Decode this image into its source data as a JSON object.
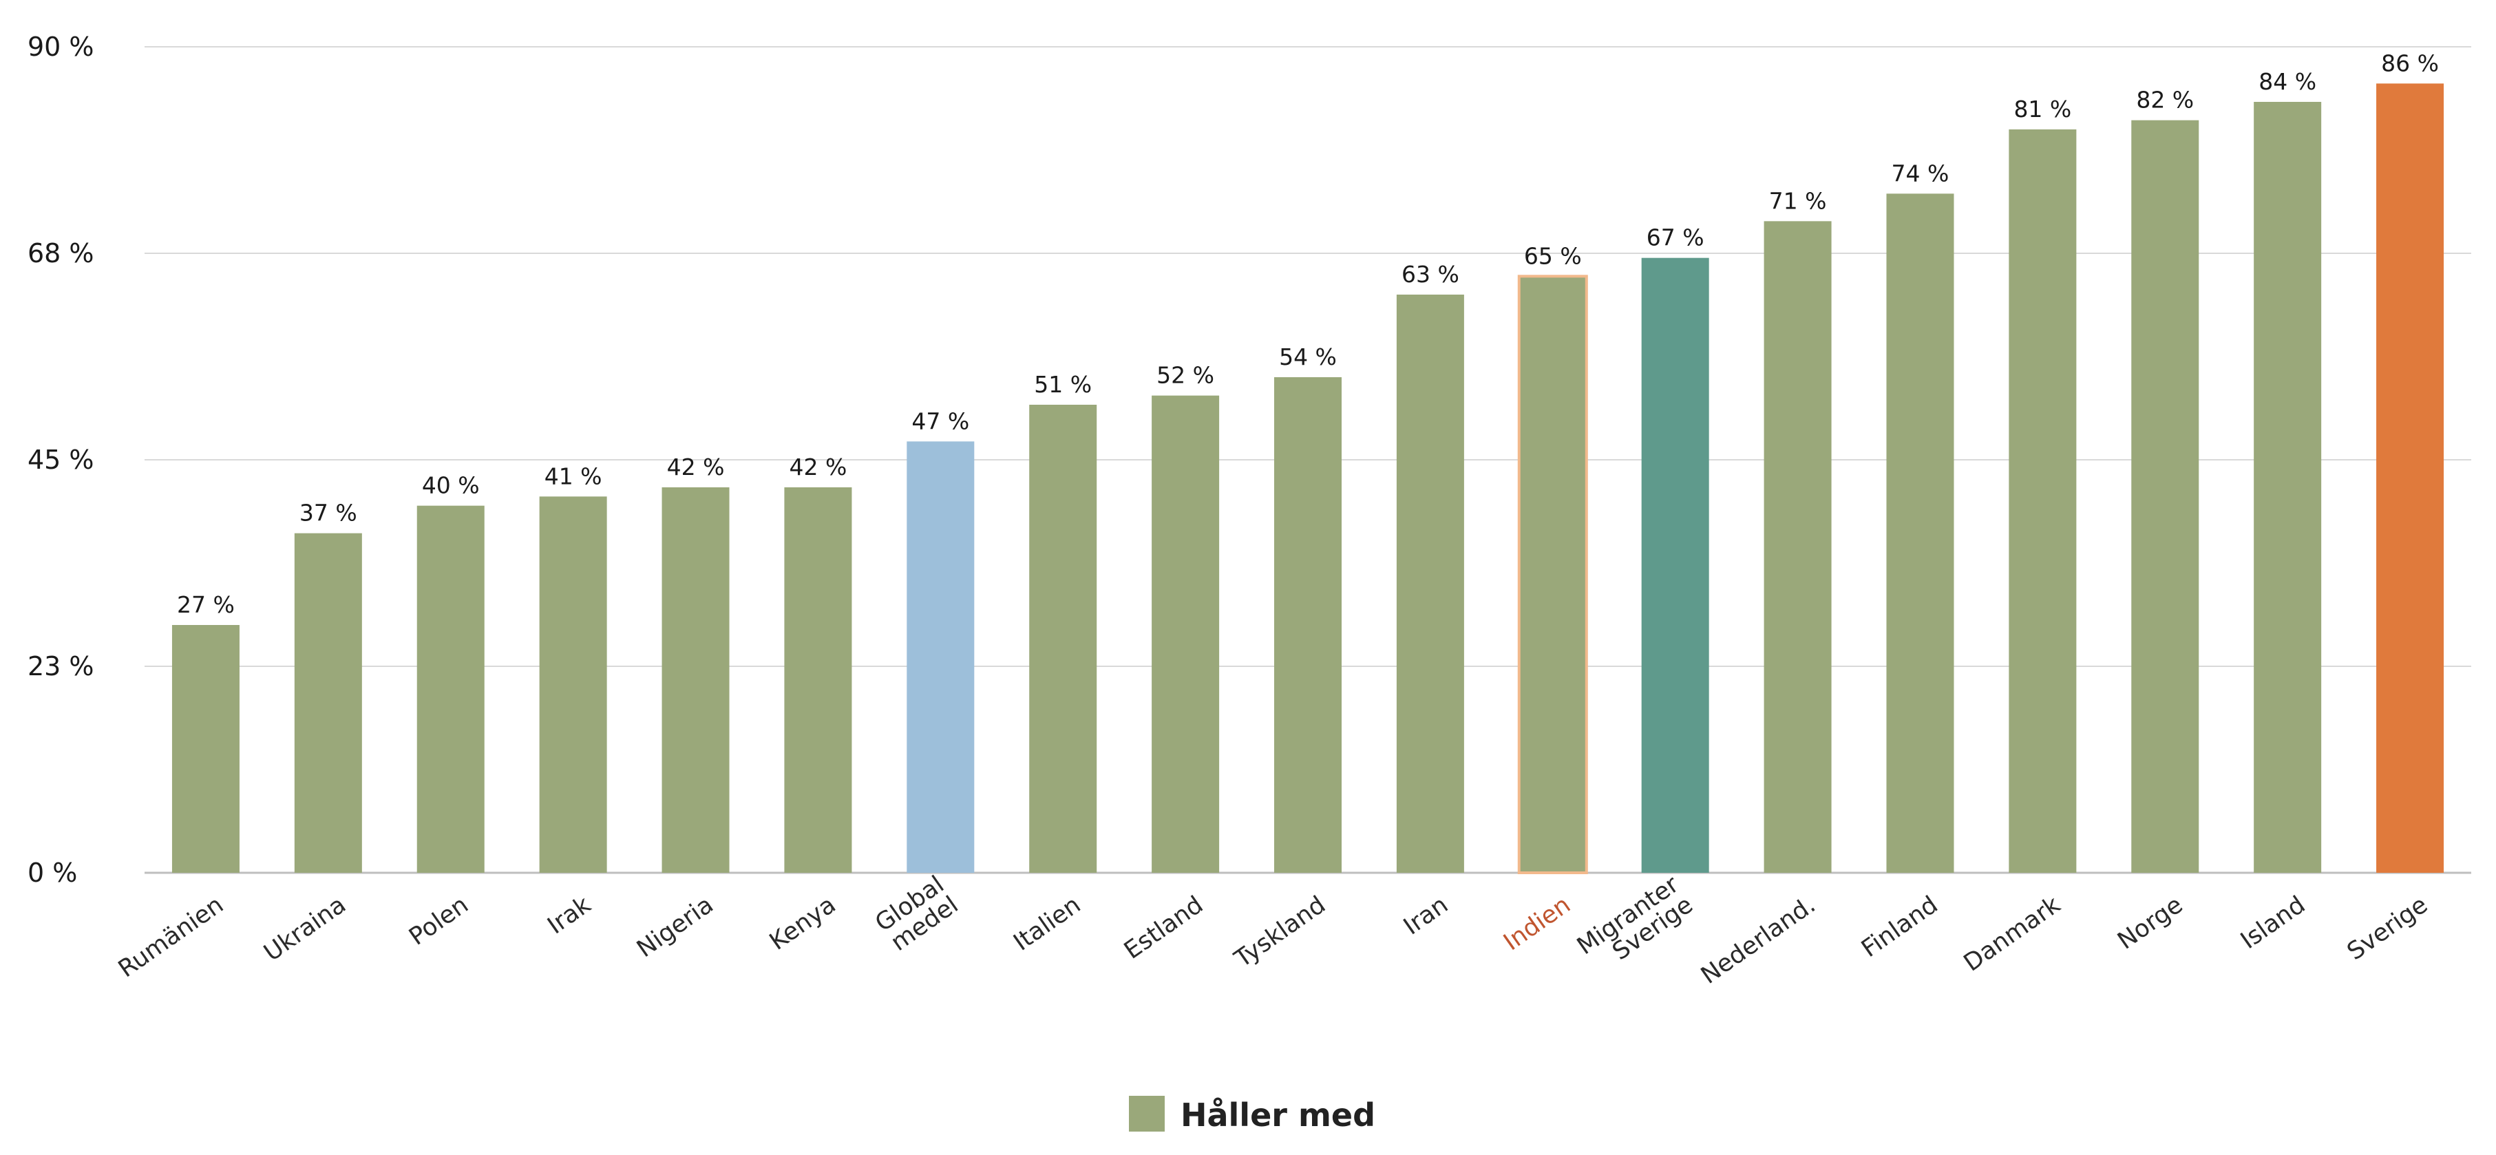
{
  "chart_data": {
    "type": "bar",
    "title": "",
    "xlabel": "",
    "ylabel": "",
    "ylim": [
      0,
      90
    ],
    "yticks": [
      "0 %",
      "23 %",
      "45 %",
      "68 %",
      "90 %"
    ],
    "ytick_values": [
      0,
      22.5,
      45,
      67.5,
      90
    ],
    "grid": "horizontal",
    "legend": {
      "placement": "bottom-center",
      "label": "Håller med",
      "color": "#9aa87a"
    },
    "categories": [
      "Rumänien",
      "Ukraina",
      "Polen",
      "Irak",
      "Nigeria",
      "Kenya",
      "Global medel",
      "Italien",
      "Estland",
      "Tyskland",
      "Iran",
      "Indien",
      "Migranter Sverige",
      "Nederland.",
      "Finland",
      "Danmark",
      "Norge",
      "Island",
      "Sverige"
    ],
    "category_lines": [
      [
        "Rumänien"
      ],
      [
        "Ukraina"
      ],
      [
        "Polen"
      ],
      [
        "Irak"
      ],
      [
        "Nigeria"
      ],
      [
        "Kenya"
      ],
      [
        "Global",
        "medel"
      ],
      [
        "Italien"
      ],
      [
        "Estland"
      ],
      [
        "Tyskland"
      ],
      [
        "Iran"
      ],
      [
        "Indien"
      ],
      [
        "Migranter",
        "Sverige"
      ],
      [
        "Nederland."
      ],
      [
        "Finland"
      ],
      [
        "Danmark"
      ],
      [
        "Norge"
      ],
      [
        "Island"
      ],
      [
        "Sverige"
      ]
    ],
    "series": [
      {
        "name": "Håller med",
        "values": [
          27,
          37,
          40,
          41,
          42,
          42,
          47,
          51,
          52,
          54,
          63,
          65,
          67,
          71,
          74,
          81,
          82,
          84,
          86
        ],
        "value_labels": [
          "27 %",
          "37 %",
          "40 %",
          "41 %",
          "42 %",
          "42 %",
          "47 %",
          "51 %",
          "52 %",
          "54 %",
          "63 %",
          "65 %",
          "67 %",
          "71 %",
          "74 %",
          "81 %",
          "82 %",
          "84 %",
          "86 %"
        ]
      }
    ],
    "colors": {
      "default": "#9aa87a",
      "highlight": {
        "Global medel": "#9dbfda",
        "Migranter Sverige": "#5f9a8c",
        "Sverige": "#e07a3c"
      },
      "outline": {
        "Indien": "#f2b98c"
      },
      "label_color": {
        "Indien": "#c0552f"
      },
      "grid": "#d9d9d9",
      "axis": "#bfbfbf"
    }
  }
}
